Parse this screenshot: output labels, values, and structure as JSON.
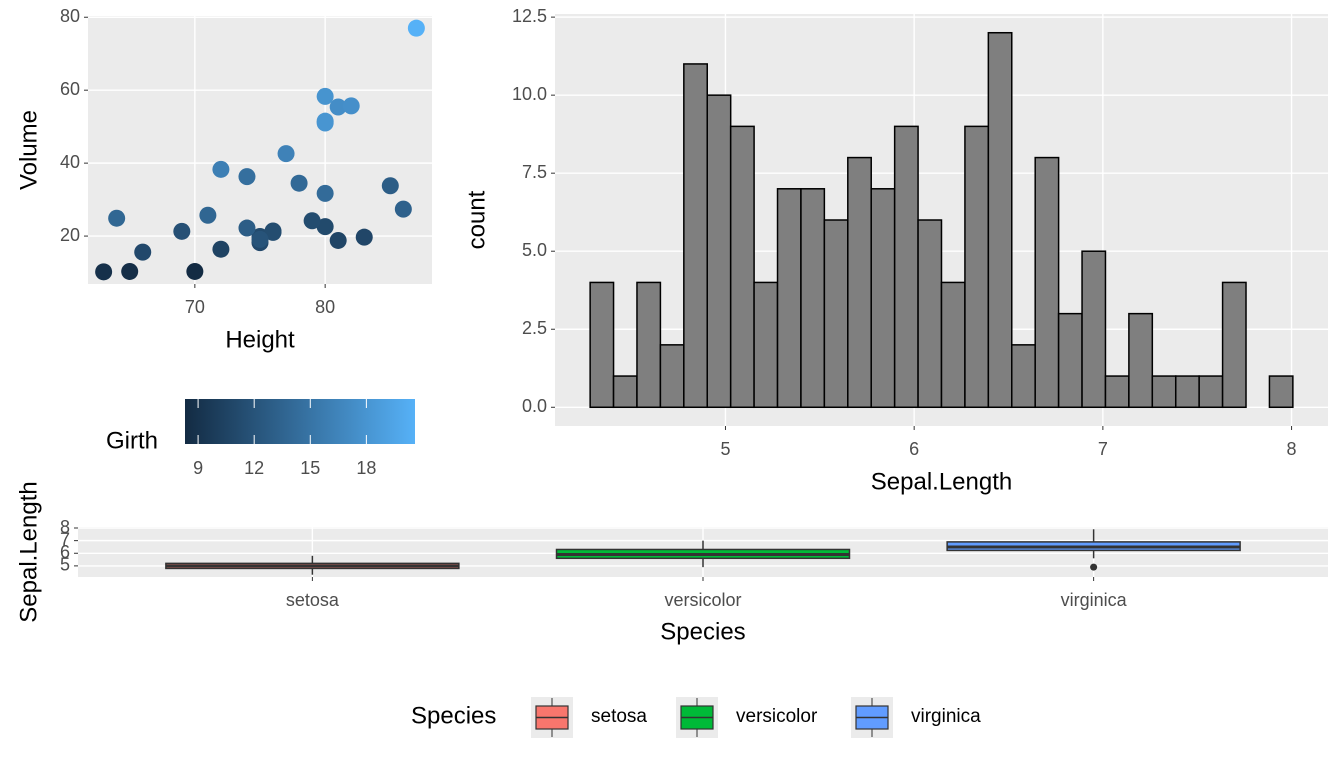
{
  "chart_data": [
    {
      "type": "scatter",
      "x_label": "Height",
      "y_label": "Volume",
      "x": [
        70,
        65,
        63,
        72,
        81,
        83,
        66,
        75,
        80,
        75,
        79,
        76,
        76,
        69,
        75,
        74,
        85,
        86,
        71,
        64,
        78,
        80,
        74,
        72,
        77,
        81,
        82,
        80,
        80,
        80,
        87
      ],
      "values": [
        10.3,
        10.3,
        10.2,
        16.4,
        18.8,
        19.7,
        15.6,
        18.2,
        22.6,
        19.9,
        24.2,
        21.0,
        21.4,
        21.3,
        19.1,
        22.2,
        33.8,
        27.4,
        25.7,
        24.9,
        34.5,
        31.7,
        36.3,
        38.3,
        42.6,
        55.4,
        55.7,
        58.3,
        51.5,
        51.0,
        77.0
      ],
      "color_values": [
        8.3,
        8.6,
        8.8,
        10.5,
        10.7,
        10.8,
        11.0,
        11.0,
        11.1,
        11.2,
        11.3,
        11.4,
        11.4,
        11.7,
        12.0,
        12.9,
        12.9,
        13.3,
        13.7,
        13.8,
        14.0,
        14.2,
        14.5,
        16.0,
        16.3,
        17.3,
        17.5,
        17.9,
        18.0,
        18.0,
        20.6
      ],
      "xlim": [
        61.8,
        88.2
      ],
      "xticks": [
        70,
        80
      ],
      "ylim": [
        6.86,
        80.34
      ],
      "yticks": [
        20,
        40,
        60,
        80
      ],
      "grid": true,
      "colorbar": {
        "title": "Girth",
        "limits": [
          8.3,
          20.6
        ],
        "ticks": [
          9,
          12,
          15,
          18
        ],
        "colors": [
          "#132B43",
          "#56B1F7"
        ]
      }
    },
    {
      "type": "histogram",
      "x_label": "Sepal.Length",
      "y_label": "count",
      "color": "#7F7F7F",
      "edgecolor": "#000000",
      "bins": [
        4.2828,
        4.4069,
        4.531,
        4.6552,
        4.7793,
        4.9034,
        5.0276,
        5.1517,
        5.2759,
        5.4,
        5.5241,
        5.6483,
        5.7724,
        5.8966,
        6.0207,
        6.1448,
        6.269,
        6.3931,
        6.5172,
        6.6414,
        6.7655,
        6.8897,
        7.0138,
        7.1379,
        7.2621,
        7.3862,
        7.5103,
        7.6345,
        7.7586,
        7.8828,
        8.0069
      ],
      "values": [
        4,
        1,
        4,
        2,
        11,
        10,
        9,
        4,
        7,
        7,
        6,
        8,
        7,
        9,
        6,
        4,
        9,
        12,
        2,
        8,
        3,
        5,
        1,
        3,
        1,
        1,
        1,
        4,
        0,
        1
      ],
      "xlim": [
        4.0966,
        8.1931
      ],
      "xticks": [
        5,
        6,
        7,
        8
      ],
      "ylim": [
        -0.6,
        12.6
      ],
      "yticks": [
        {
          "value": 0,
          "label": "0.0"
        },
        2.5,
        {
          "value": 5,
          "label": "5.0"
        },
        7.5,
        {
          "value": 10,
          "label": "10.0"
        },
        12.5
      ],
      "grid": true
    },
    {
      "type": "box",
      "x_label": "Species",
      "y_label": "Sepal.Length",
      "categories": [
        "setosa",
        "versicolor",
        "virginica"
      ],
      "colors": [
        "#F8766D",
        "#00BA38",
        "#619CFF"
      ],
      "values": [
        {
          "min": 4.3,
          "q1": 4.8,
          "median": 5.0,
          "q3": 5.2,
          "max": 5.8,
          "outliers": []
        },
        {
          "min": 4.9,
          "q1": 5.6,
          "median": 5.9,
          "q3": 6.3,
          "max": 7.0,
          "outliers": []
        },
        {
          "min": 5.6,
          "q1": 6.225,
          "median": 6.5,
          "q3": 6.9,
          "max": 7.9,
          "outliers": [
            4.9
          ]
        }
      ],
      "ylim": [
        4.12,
        8.08
      ],
      "yticks": [
        5,
        6,
        7,
        8
      ],
      "grid": true,
      "legend": {
        "title": "Species",
        "position": "bottom"
      }
    }
  ]
}
